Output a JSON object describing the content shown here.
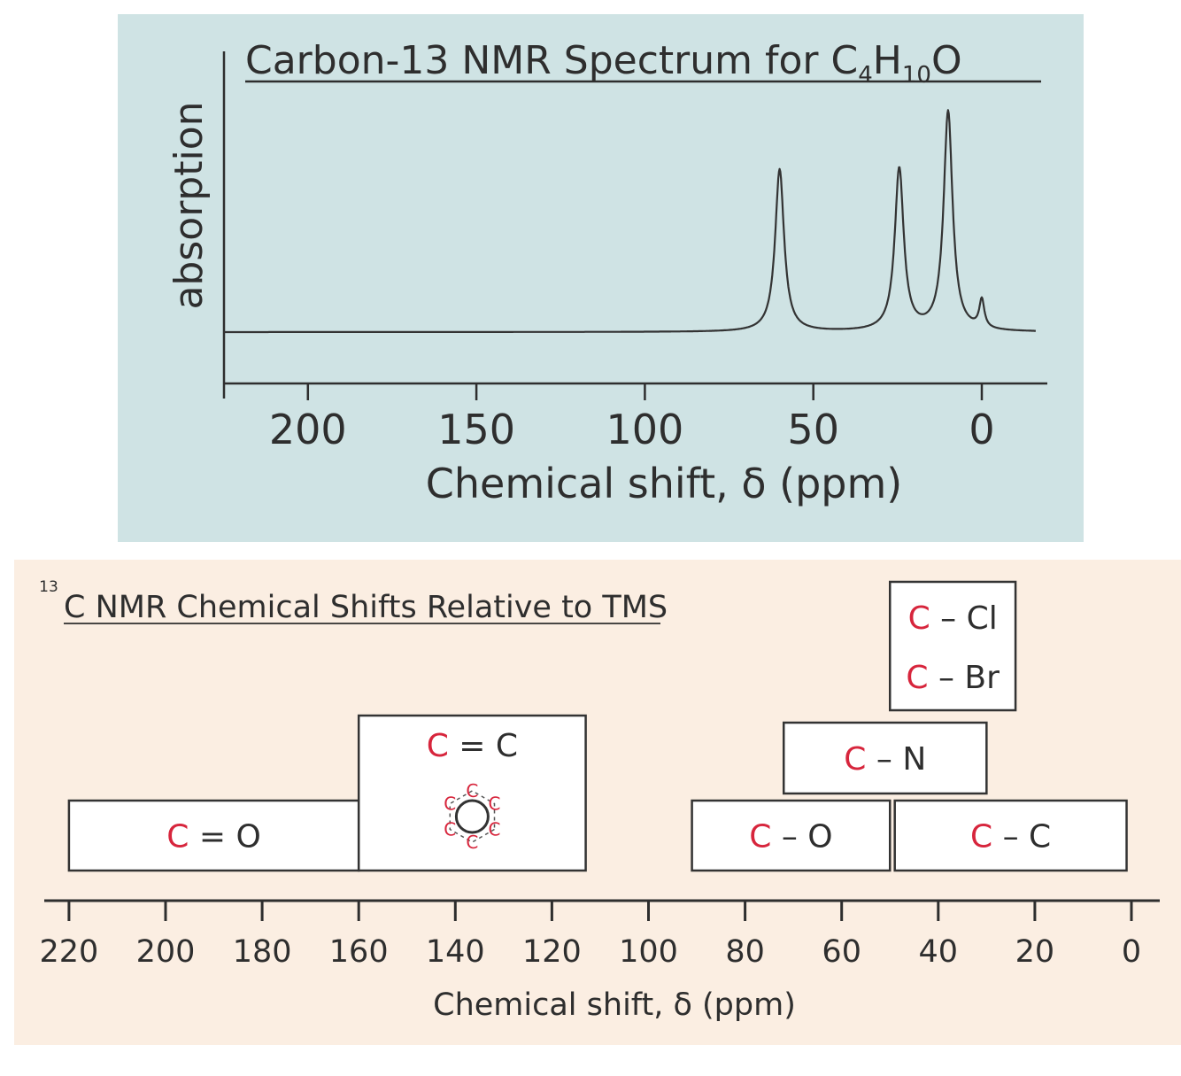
{
  "chart_data": [
    {
      "type": "line",
      "title": "Carbon-13 NMR Spectrum for C",
      "title_sub1": "4",
      "title_mid": "H",
      "title_sub2": "10",
      "title_end": "O",
      "xlabel": "Chemical shift, δ (ppm)",
      "ylabel": "absorption",
      "x_reversed": true,
      "xlim": [
        225,
        -16
      ],
      "ticks": [
        200,
        150,
        100,
        50,
        0
      ],
      "peaks": [
        {
          "x": 60,
          "height": 0.74
        },
        {
          "x": 24.5,
          "height": 0.74
        },
        {
          "x": 10,
          "height": 1.0
        },
        {
          "x": 0,
          "height": 0.13
        }
      ],
      "colors": {
        "background": "#cfe3e4",
        "line": "#333333"
      }
    },
    {
      "type": "bar",
      "title_sup": "13",
      "title": "C NMR Chemical Shifts Relative to TMS",
      "xlabel": "Chemical shift, δ (ppm)",
      "x_reversed": true,
      "xlim": [
        220,
        0
      ],
      "ticks": [
        220,
        200,
        180,
        160,
        140,
        120,
        100,
        80,
        60,
        40,
        20,
        0
      ],
      "ranges": [
        {
          "label": "C = O",
          "atom": "C",
          "rest": " = O",
          "from": 220,
          "to": 160,
          "row": 0
        },
        {
          "label": "C = C",
          "atom": "C",
          "rest": " = C",
          "from": 160,
          "to": 113,
          "row": 0,
          "tall": true,
          "aromatic": true
        },
        {
          "label": "C – O",
          "atom": "C",
          "rest": " – O",
          "from": 91,
          "to": 50,
          "row": 0
        },
        {
          "label": "C – C",
          "atom": "C",
          "rest": " – C",
          "from": 49,
          "to": 1,
          "row": 0
        },
        {
          "label": "C – N",
          "atom": "C",
          "rest": " – N",
          "from": 72,
          "to": 30,
          "row": 1
        },
        {
          "label": "C – Cl / C – Br",
          "lines": [
            {
              "atom": "C",
              "rest": " – Cl"
            },
            {
              "atom": "C",
              "rest": " – Br"
            }
          ],
          "from": 50,
          "to": 24,
          "row": 2
        }
      ],
      "colors": {
        "background": "#fbeee2",
        "atom": "#d7253c",
        "text": "#2e2e2e"
      }
    }
  ]
}
